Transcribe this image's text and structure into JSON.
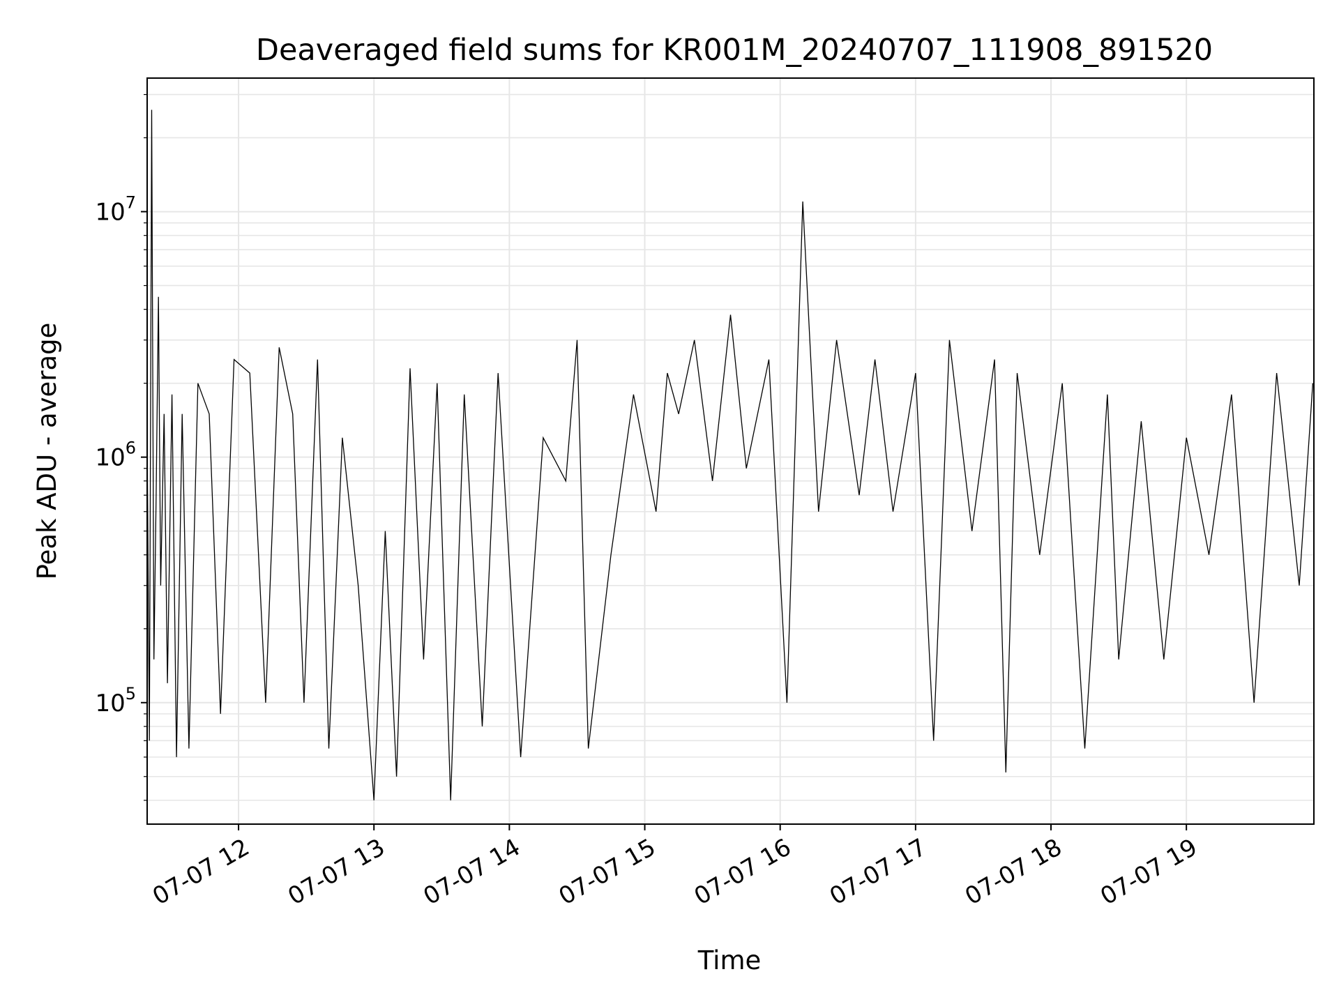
{
  "chart_data": {
    "type": "line",
    "title": "Deaveraged field sums for KR001M_20240707_111908_891520",
    "xlabel": "Time",
    "ylabel": "Peak ADU - average",
    "yscale": "log",
    "ylim": [
      32000,
      35000000
    ],
    "xlim": [
      "2024-07-07T11:19:30",
      "2024-07-07T19:56:30"
    ],
    "grid": true,
    "line_color": "#000000",
    "x_ticks": [
      {
        "label": "07-07 12",
        "time": "2024-07-07T12:00:00"
      },
      {
        "label": "07-07 13",
        "time": "2024-07-07T13:00:00"
      },
      {
        "label": "07-07 14",
        "time": "2024-07-07T14:00:00"
      },
      {
        "label": "07-07 15",
        "time": "2024-07-07T15:00:00"
      },
      {
        "label": "07-07 16",
        "time": "2024-07-07T16:00:00"
      },
      {
        "label": "07-07 17",
        "time": "2024-07-07T17:00:00"
      },
      {
        "label": "07-07 18",
        "time": "2024-07-07T18:00:00"
      },
      {
        "label": "07-07 19",
        "time": "2024-07-07T19:00:00"
      }
    ],
    "y_ticks": [
      {
        "base": "10",
        "exp": "5",
        "value": 100000
      },
      {
        "base": "10",
        "exp": "6",
        "value": 1000000
      },
      {
        "base": "10",
        "exp": "7",
        "value": 10000000
      }
    ],
    "series": [
      {
        "x": [
          "2024-07-07T11:19:30",
          "2024-07-07T11:20:30",
          "2024-07-07T11:21:30",
          "2024-07-07T11:22:30",
          "2024-07-07T11:23:30",
          "2024-07-07T11:24:30",
          "2024-07-07T11:25:30",
          "2024-07-07T11:27:00",
          "2024-07-07T11:28:30",
          "2024-07-07T11:30:30",
          "2024-07-07T11:32:30",
          "2024-07-07T11:35:00",
          "2024-07-07T11:38:00",
          "2024-07-07T11:42:00",
          "2024-07-07T11:47:00",
          "2024-07-07T11:52:00",
          "2024-07-07T11:58:00",
          "2024-07-07T12:05:00",
          "2024-07-07T12:12:00",
          "2024-07-07T12:18:00",
          "2024-07-07T12:24:00",
          "2024-07-07T12:29:00",
          "2024-07-07T12:35:00",
          "2024-07-07T12:40:00",
          "2024-07-07T12:46:00",
          "2024-07-07T12:53:00",
          "2024-07-07T13:00:00",
          "2024-07-07T13:05:00",
          "2024-07-07T13:10:00",
          "2024-07-07T13:16:00",
          "2024-07-07T13:22:00",
          "2024-07-07T13:28:00",
          "2024-07-07T13:34:00",
          "2024-07-07T13:40:00",
          "2024-07-07T13:48:00",
          "2024-07-07T13:55:00",
          "2024-07-07T14:05:00",
          "2024-07-07T14:15:00",
          "2024-07-07T14:25:00",
          "2024-07-07T14:30:00",
          "2024-07-07T14:35:00",
          "2024-07-07T14:45:00",
          "2024-07-07T14:55:00",
          "2024-07-07T15:05:00",
          "2024-07-07T15:10:00",
          "2024-07-07T15:15:00",
          "2024-07-07T15:22:00",
          "2024-07-07T15:30:00",
          "2024-07-07T15:38:00",
          "2024-07-07T15:45:00",
          "2024-07-07T15:55:00",
          "2024-07-07T16:03:00",
          "2024-07-07T16:10:00",
          "2024-07-07T16:17:00",
          "2024-07-07T16:25:00",
          "2024-07-07T16:35:00",
          "2024-07-07T16:42:00",
          "2024-07-07T16:50:00",
          "2024-07-07T17:00:00",
          "2024-07-07T17:08:00",
          "2024-07-07T17:15:00",
          "2024-07-07T17:25:00",
          "2024-07-07T17:35:00",
          "2024-07-07T17:40:00",
          "2024-07-07T17:45:00",
          "2024-07-07T17:55:00",
          "2024-07-07T18:05:00",
          "2024-07-07T18:15:00",
          "2024-07-07T18:25:00",
          "2024-07-07T18:30:00",
          "2024-07-07T18:40:00",
          "2024-07-07T18:50:00",
          "2024-07-07T19:00:00",
          "2024-07-07T19:10:00",
          "2024-07-07T19:20:00",
          "2024-07-07T19:30:00",
          "2024-07-07T19:40:00",
          "2024-07-07T19:50:00",
          "2024-07-07T19:56:00"
        ],
        "y": [
          1200000,
          70000,
          26000000,
          150000,
          700000,
          4500000,
          300000,
          1500000,
          120000,
          1800000,
          60000,
          1500000,
          65000,
          2000000,
          1500000,
          90000,
          2500000,
          2200000,
          100000,
          2800000,
          1500000,
          100000,
          2500000,
          65000,
          1200000,
          300000,
          40000,
          500000,
          50000,
          2300000,
          150000,
          2000000,
          40000,
          1800000,
          80000,
          2200000,
          60000,
          1200000,
          800000,
          3000000,
          65000,
          400000,
          1800000,
          600000,
          2200000,
          1500000,
          3000000,
          800000,
          3800000,
          900000,
          2500000,
          100000,
          11000000,
          600000,
          3000000,
          700000,
          2500000,
          600000,
          2200000,
          70000,
          3000000,
          500000,
          2500000,
          52000,
          2200000,
          400000,
          2000000,
          65000,
          1800000,
          150000,
          1400000,
          150000,
          1200000,
          400000,
          1800000,
          100000,
          2200000,
          300000,
          2000000
        ]
      }
    ]
  }
}
